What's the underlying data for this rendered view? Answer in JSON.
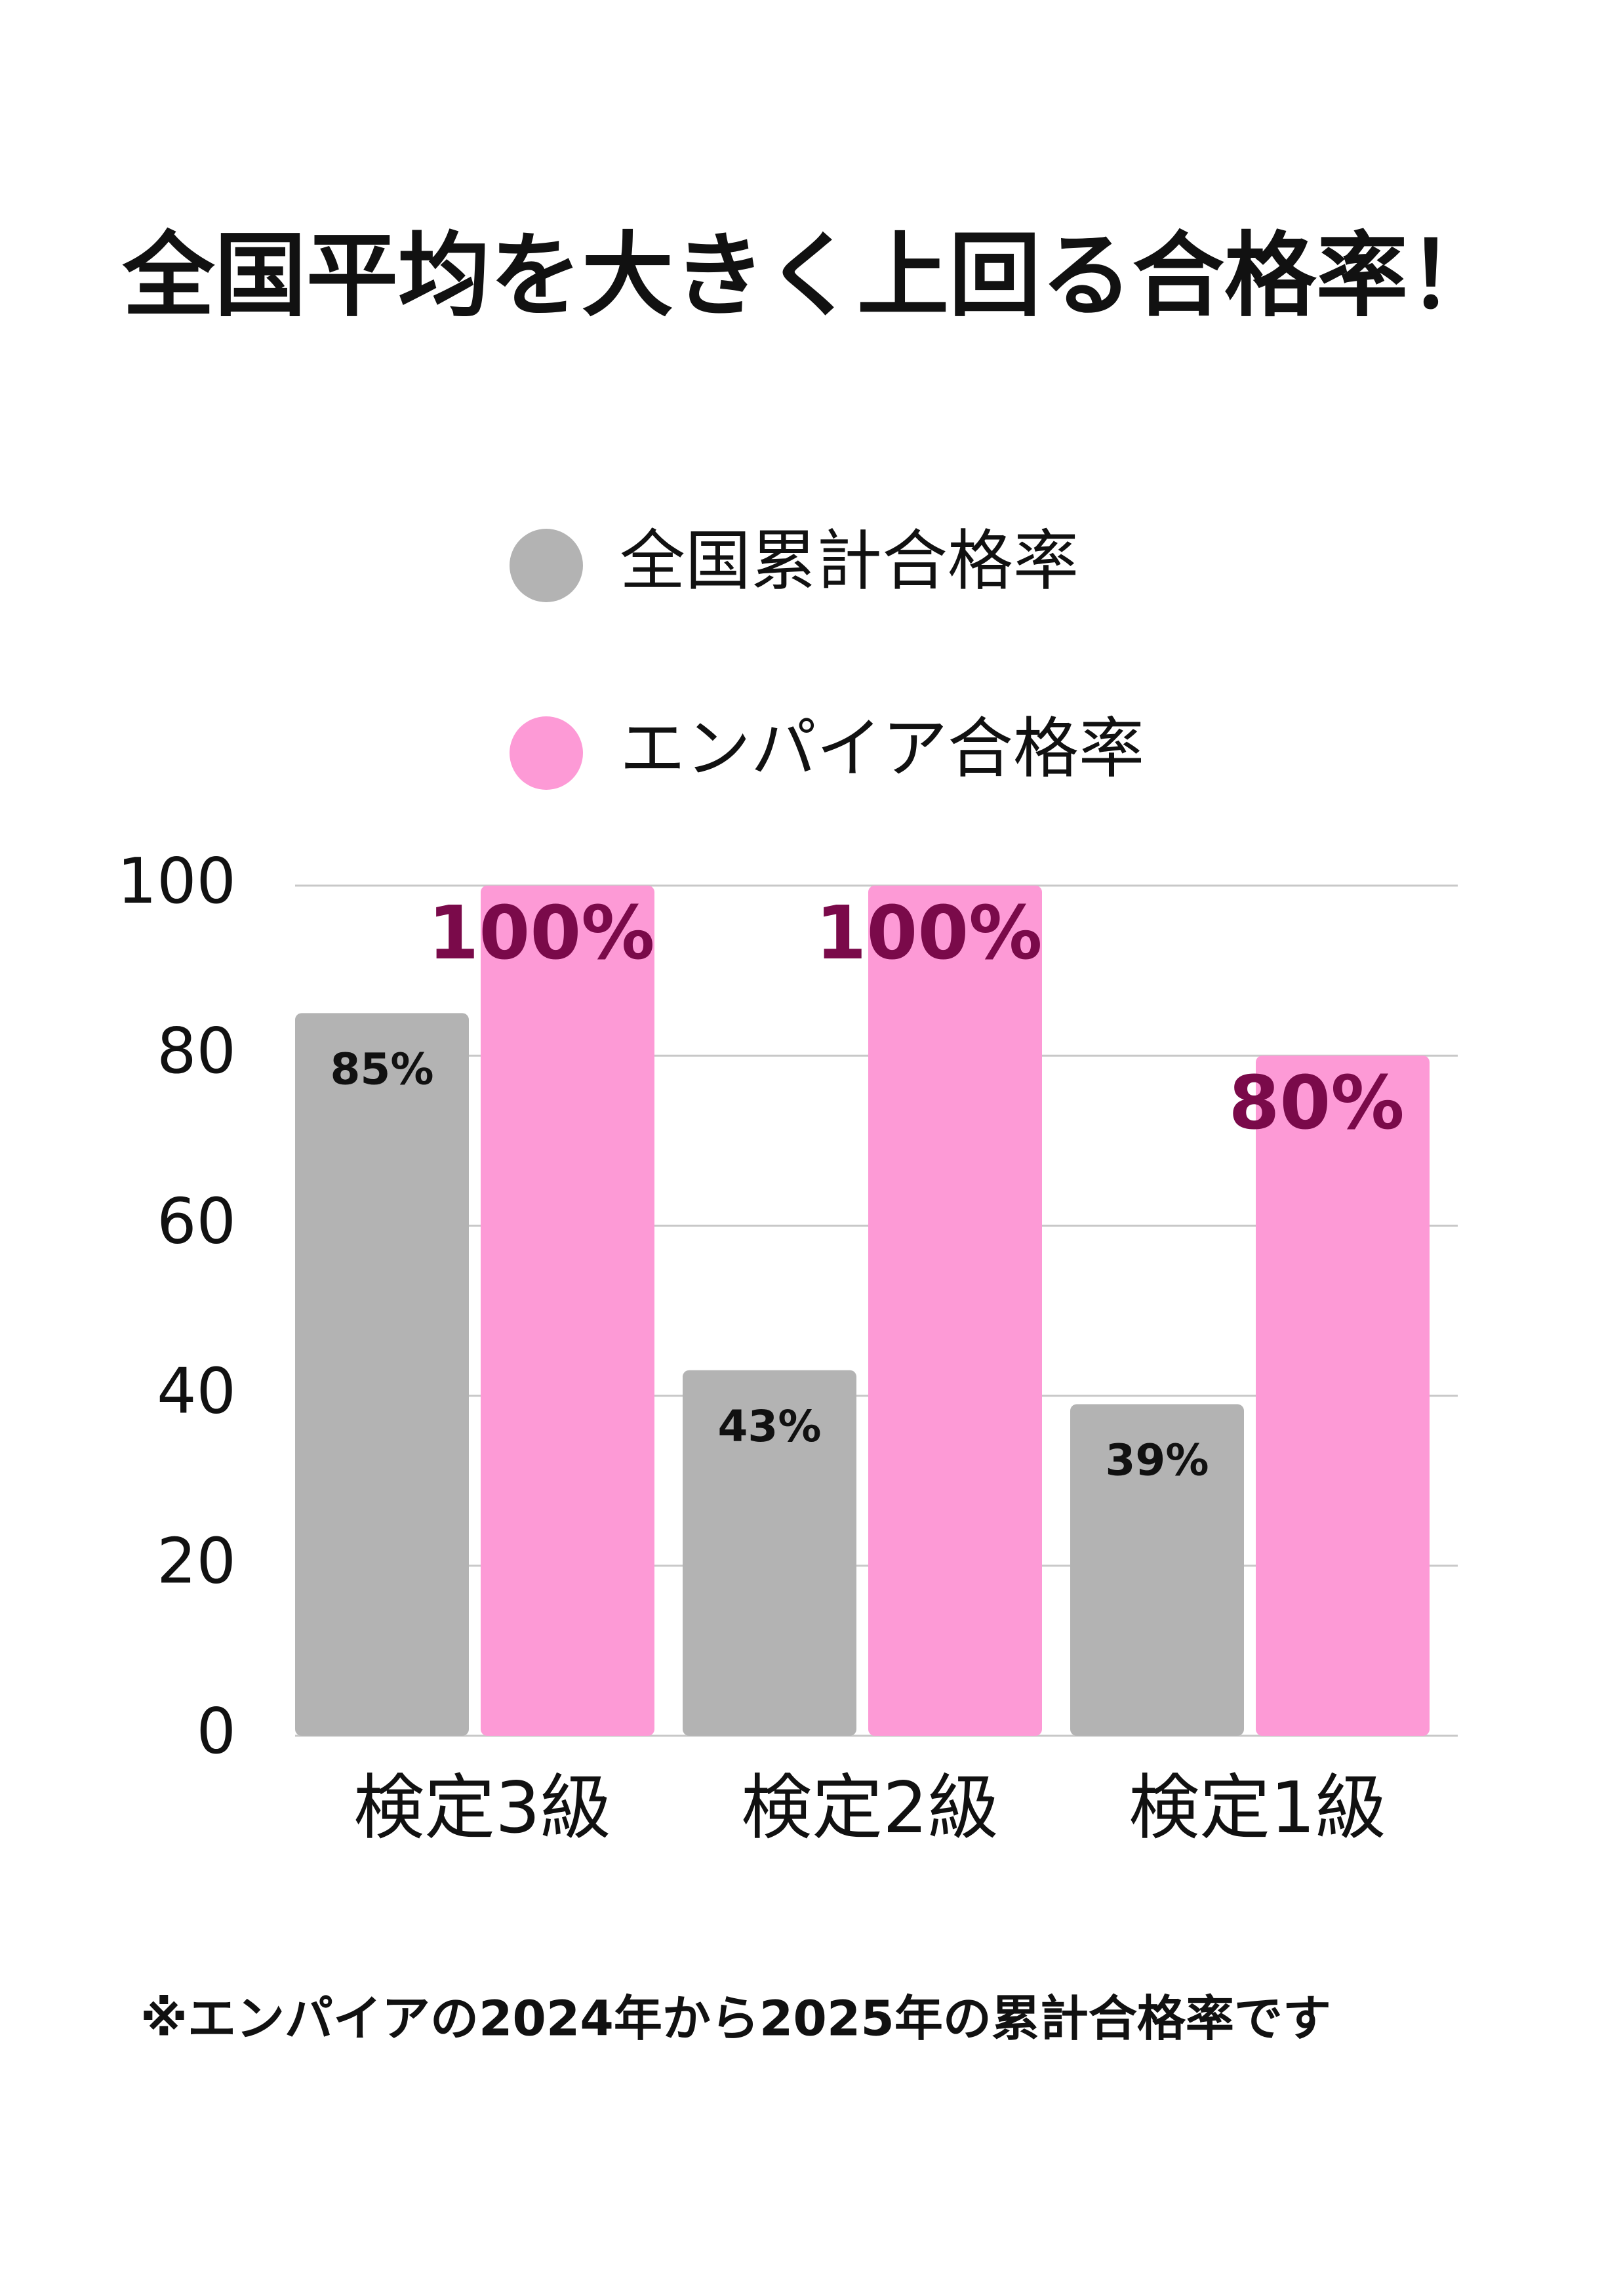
{
  "chart_data": {
    "type": "bar",
    "title": "全国平均を大きく上回る合格率！",
    "categories": [
      "検定3級",
      "検定2級",
      "検定1級"
    ],
    "series": [
      {
        "name": "全国累計合格率",
        "color": "#b3b3b3",
        "values": [
          85,
          43,
          39
        ],
        "value_labels": [
          "85%",
          "43%",
          "39%"
        ]
      },
      {
        "name": "エンパイア合格率",
        "color": "#fd9ad6",
        "values": [
          100,
          100,
          80
        ],
        "value_labels": [
          "100%",
          "100%",
          "80%"
        ]
      }
    ],
    "ylim": [
      0,
      100
    ],
    "yticks": [
      0,
      20,
      40,
      60,
      80,
      100
    ],
    "grid": true,
    "note": "※エンパイアの2024年から2025年の累計合格率です"
  }
}
